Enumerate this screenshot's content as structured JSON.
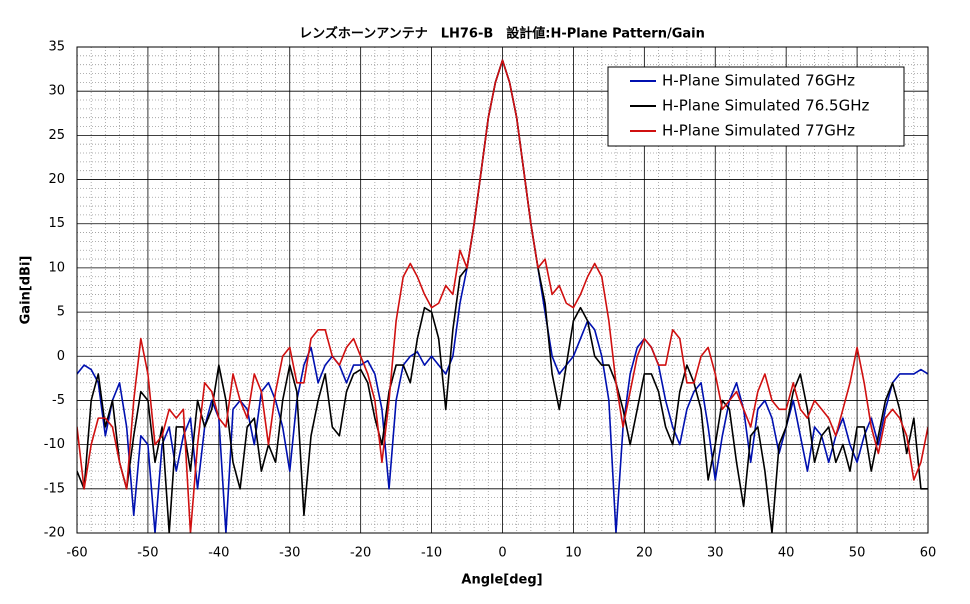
{
  "chart_data": {
    "type": "line",
    "title": "レンズホーンアンテナ　LH76-B　設計値:H-Plane Pattern/Gain",
    "x_label": "Angle[deg]",
    "y_label": "Gain[dBi]",
    "x": [
      -60,
      -59,
      -58,
      -57,
      -56,
      -55,
      -54,
      -53,
      -52,
      -51,
      -50,
      -49,
      -48,
      -47,
      -46,
      -45,
      -44,
      -43,
      -42,
      -41,
      -40,
      -39,
      -38,
      -37,
      -36,
      -35,
      -34,
      -33,
      -32,
      -31,
      -30,
      -29,
      -28,
      -27,
      -26,
      -25,
      -24,
      -23,
      -22,
      -21,
      -20,
      -19,
      -18,
      -17,
      -16,
      -15,
      -14,
      -13,
      -12,
      -11,
      -10,
      -9,
      -8,
      -7,
      -6,
      -5,
      -4,
      -3,
      -2,
      -1,
      0,
      1,
      2,
      3,
      4,
      5,
      6,
      7,
      8,
      9,
      10,
      11,
      12,
      13,
      14,
      15,
      16,
      17,
      18,
      19,
      20,
      21,
      22,
      23,
      24,
      25,
      26,
      27,
      28,
      29,
      30,
      31,
      32,
      33,
      34,
      35,
      36,
      37,
      38,
      39,
      40,
      41,
      42,
      43,
      44,
      45,
      46,
      47,
      48,
      49,
      50,
      51,
      52,
      53,
      54,
      55,
      56,
      57,
      58,
      59,
      60
    ],
    "series": [
      {
        "name": "H-Plane Simulated 76GHz",
        "color": "#0010b0",
        "values": [
          -2,
          -1,
          -1.5,
          -3,
          -9,
          -5,
          -3,
          -8,
          -18,
          -9,
          -10,
          -20,
          -10,
          -8,
          -13,
          -9,
          -7,
          -15,
          -8,
          -5,
          -7,
          -20,
          -6,
          -5,
          -6,
          -10,
          -4,
          -3,
          -5,
          -8,
          -13,
          -5,
          -1,
          1,
          -3,
          -1,
          0,
          -1,
          -3,
          -1,
          -1,
          -0.5,
          -2,
          -6,
          -15,
          -5,
          -1,
          0,
          0.5,
          -1,
          0,
          -1,
          -2,
          0,
          6,
          10,
          15,
          21,
          27,
          31,
          33.5,
          31,
          27,
          21,
          15,
          10,
          5,
          0,
          -2,
          -1,
          0,
          2,
          4,
          3,
          0,
          -5,
          -20,
          -8,
          -2,
          1,
          2,
          1,
          -1,
          -5,
          -8,
          -10,
          -6,
          -4,
          -3,
          -8,
          -14,
          -9,
          -5,
          -3,
          -6,
          -12,
          -6,
          -5,
          -7,
          -11,
          -8,
          -5,
          -9,
          -13,
          -8,
          -9,
          -12,
          -9,
          -7,
          -10,
          -12,
          -9,
          -7,
          -10,
          -6,
          -3,
          -2,
          -2,
          -2,
          -1.5,
          -2
        ]
      },
      {
        "name": "H-Plane Simulated 76.5GHz",
        "color": "#000000",
        "values": [
          -13,
          -15,
          -5,
          -2,
          -8,
          -5,
          -12,
          -15,
          -9,
          -4,
          -5,
          -12,
          -8,
          -20,
          -8,
          -8,
          -13,
          -5,
          -8,
          -6,
          -1,
          -5,
          -12,
          -15,
          -8,
          -7,
          -13,
          -10,
          -12,
          -5,
          -1,
          -4,
          -18,
          -9,
          -5,
          -2,
          -8,
          -9,
          -4,
          -2,
          -1.5,
          -3,
          -7,
          -10,
          -4,
          -1,
          -1,
          -3,
          2,
          5.5,
          5,
          2,
          -6,
          3,
          9,
          10,
          15,
          21,
          27,
          31,
          33.5,
          31,
          27,
          21,
          15,
          10,
          6,
          -2,
          -6,
          -1,
          4,
          5.5,
          4,
          0,
          -1,
          -1,
          -3,
          -6,
          -10,
          -6,
          -2,
          -2,
          -4,
          -8,
          -10,
          -4,
          -1,
          -3,
          -6,
          -14,
          -10,
          -5,
          -6,
          -12,
          -17,
          -9,
          -8,
          -13,
          -20,
          -10,
          -8,
          -4,
          -2,
          -6,
          -12,
          -9,
          -8,
          -12,
          -10,
          -13,
          -8,
          -8,
          -13,
          -9,
          -5,
          -3,
          -6,
          -11,
          -7,
          -15,
          -15
        ]
      },
      {
        "name": "H-Plane Simulated 77GHz",
        "color": "#d01010",
        "values": [
          -8,
          -15,
          -10,
          -7,
          -7,
          -8,
          -12,
          -15,
          -5,
          2,
          -2,
          -10,
          -9,
          -6,
          -7,
          -6,
          -20,
          -10,
          -3,
          -4,
          -7,
          -8,
          -2,
          -5,
          -7,
          -2,
          -4,
          -10,
          -4,
          0,
          1,
          -3,
          -3,
          2,
          3,
          3,
          0,
          -1,
          1,
          2,
          0,
          -2,
          -5,
          -12,
          -5,
          4,
          9,
          10.5,
          9,
          7,
          5.5,
          6,
          8,
          7,
          12,
          10,
          15,
          21,
          27,
          31,
          33.5,
          31,
          27,
          21,
          15,
          10,
          11,
          7,
          8,
          6,
          5.5,
          7,
          9,
          10.5,
          9,
          4,
          -3,
          -8,
          -4,
          0,
          2,
          1,
          -1,
          -1,
          3,
          2,
          -3,
          -3,
          0,
          1,
          -2,
          -6,
          -5,
          -4,
          -6,
          -8,
          -4,
          -2,
          -5,
          -6,
          -6,
          -3,
          -6,
          -7,
          -5,
          -6,
          -7,
          -9,
          -6,
          -3,
          1,
          -3,
          -8,
          -11,
          -7,
          -6,
          -7,
          -9,
          -14,
          -12,
          -8
        ]
      }
    ],
    "xlim": [
      -60,
      60
    ],
    "xticks": [
      -60,
      -50,
      -40,
      -30,
      -20,
      -10,
      0,
      10,
      20,
      30,
      40,
      50,
      60
    ],
    "ylim": [
      -20,
      35
    ],
    "yticks": [
      -20,
      -15,
      -10,
      -5,
      0,
      5,
      10,
      15,
      20,
      25,
      30,
      35
    ],
    "grid": true,
    "minor_grid": true,
    "legend": "upper right"
  }
}
